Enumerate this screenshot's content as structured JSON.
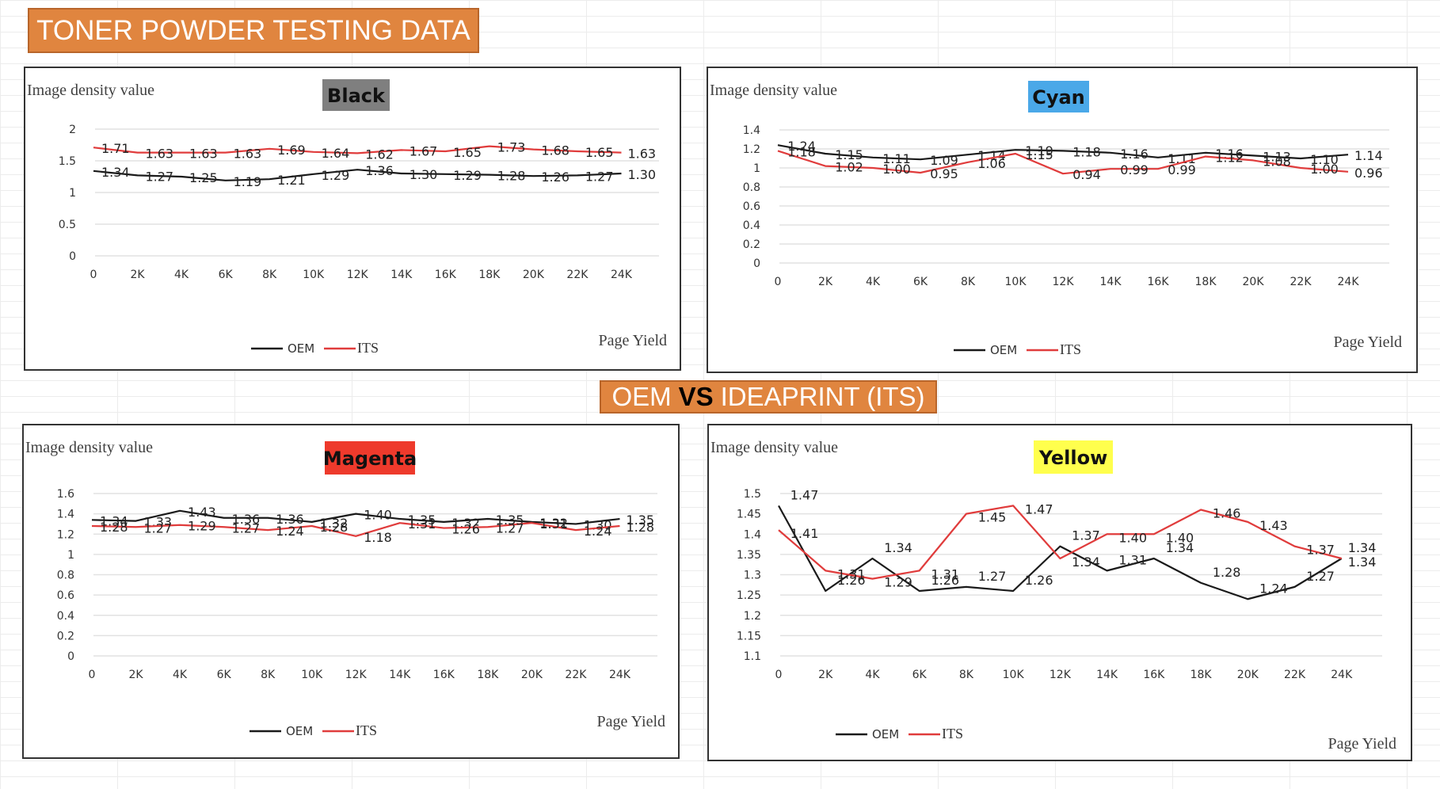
{
  "header": {
    "title": "TONER POWDER TESTING DATA",
    "banner_left": "OEM",
    "banner_vs": "VS",
    "banner_right": "IDEAPRINT (ITS)",
    "banner_color": "#e0853f"
  },
  "chart_data": [
    {
      "id": "black",
      "type": "line",
      "title": "Black",
      "title_bg": "#7f7f7f",
      "ylabel": "Image density value",
      "xlabel": "Page Yield",
      "categories": [
        "0",
        "2K",
        "4K",
        "6K",
        "8K",
        "10K",
        "12K",
        "14K",
        "16K",
        "18K",
        "20K",
        "22K",
        "24K"
      ],
      "ylim": [
        0,
        2
      ],
      "yticks": [
        "0",
        "0.5",
        "1",
        "1.5",
        "2"
      ],
      "ytick_values": [
        0,
        0.5,
        1,
        1.5,
        2
      ],
      "grid": true,
      "legend": "bottom",
      "series": [
        {
          "name": "OEM",
          "color": "#1a1a1a",
          "values": [
            1.34,
            1.27,
            1.25,
            1.19,
            1.21,
            1.29,
            1.36,
            1.3,
            1.29,
            1.28,
            1.26,
            1.27,
            1.3
          ]
        },
        {
          "name": "ITS",
          "color": "#e03c3c",
          "values": [
            1.71,
            1.63,
            1.63,
            1.63,
            1.69,
            1.64,
            1.62,
            1.67,
            1.65,
            1.73,
            1.68,
            1.65,
            1.63
          ]
        }
      ]
    },
    {
      "id": "cyan",
      "type": "line",
      "title": "Cyan",
      "title_bg": "#4aa8e8",
      "ylabel": "Image density value",
      "xlabel": "Page Yield",
      "categories": [
        "0",
        "2K",
        "4K",
        "6K",
        "8K",
        "10K",
        "12K",
        "14K",
        "16K",
        "18K",
        "20K",
        "22K",
        "24K"
      ],
      "ylim": [
        0,
        1.4
      ],
      "yticks": [
        "0",
        "0.2",
        "0.4",
        "0.6",
        "0.8",
        "1",
        "1.2",
        "1.4"
      ],
      "ytick_values": [
        0,
        0.2,
        0.4,
        0.6,
        0.8,
        1,
        1.2,
        1.4
      ],
      "grid": true,
      "legend": "bottom",
      "series": [
        {
          "name": "OEM",
          "color": "#1a1a1a",
          "values": [
            1.24,
            1.15,
            1.11,
            1.09,
            1.14,
            1.19,
            1.18,
            1.16,
            1.11,
            1.16,
            1.13,
            1.1,
            1.14
          ]
        },
        {
          "name": "ITS",
          "color": "#e03c3c",
          "values": [
            1.18,
            1.02,
            1.0,
            0.95,
            1.06,
            1.15,
            0.94,
            0.99,
            0.99,
            1.12,
            1.08,
            1.0,
            0.96
          ]
        }
      ]
    },
    {
      "id": "magenta",
      "type": "line",
      "title": "Magenta",
      "title_bg": "#ee3a2c",
      "ylabel": "Image density value",
      "xlabel": "Page Yield",
      "categories": [
        "0",
        "2K",
        "4K",
        "6K",
        "8K",
        "10K",
        "12K",
        "14K",
        "16K",
        "18K",
        "20K",
        "22K",
        "24K"
      ],
      "ylim": [
        0,
        1.6
      ],
      "yticks": [
        "0",
        "0.2",
        "0.4",
        "0.6",
        "0.8",
        "1",
        "1.2",
        "1.4",
        "1.6"
      ],
      "ytick_values": [
        0,
        0.2,
        0.4,
        0.6,
        0.8,
        1,
        1.2,
        1.4,
        1.6
      ],
      "grid": true,
      "legend": "bottom",
      "series": [
        {
          "name": "OEM",
          "color": "#1a1a1a",
          "values": [
            1.34,
            1.33,
            1.43,
            1.36,
            1.36,
            1.32,
            1.4,
            1.35,
            1.32,
            1.35,
            1.32,
            1.3,
            1.35
          ]
        },
        {
          "name": "ITS",
          "color": "#e03c3c",
          "values": [
            1.28,
            1.27,
            1.29,
            1.27,
            1.24,
            1.28,
            1.18,
            1.31,
            1.26,
            1.27,
            1.31,
            1.24,
            1.28
          ]
        }
      ]
    },
    {
      "id": "yellow",
      "type": "line",
      "title": "Yellow",
      "title_bg": "#ffff4d",
      "ylabel": "Image density value",
      "xlabel": "Page Yield",
      "categories": [
        "0",
        "2K",
        "4K",
        "6K",
        "8K",
        "10K",
        "12K",
        "14K",
        "16K",
        "18K",
        "20K",
        "22K",
        "24K"
      ],
      "ylim": [
        1.1,
        1.5
      ],
      "yticks": [
        "1.1",
        "1.15",
        "1.2",
        "1.25",
        "1.3",
        "1.35",
        "1.4",
        "1.45",
        "1.5"
      ],
      "ytick_values": [
        1.1,
        1.15,
        1.2,
        1.25,
        1.3,
        1.35,
        1.4,
        1.45,
        1.5
      ],
      "grid": true,
      "legend": "bottom",
      "series": [
        {
          "name": "OEM",
          "color": "#1a1a1a",
          "values": [
            1.47,
            1.26,
            1.34,
            1.26,
            1.27,
            1.26,
            1.37,
            1.31,
            1.34,
            1.28,
            1.24,
            1.27,
            1.34
          ]
        },
        {
          "name": "ITS",
          "color": "#e03c3c",
          "values": [
            1.41,
            1.31,
            1.29,
            1.31,
            1.45,
            1.47,
            1.34,
            1.4,
            1.4,
            1.46,
            1.43,
            1.37,
            1.34
          ]
        }
      ]
    }
  ]
}
